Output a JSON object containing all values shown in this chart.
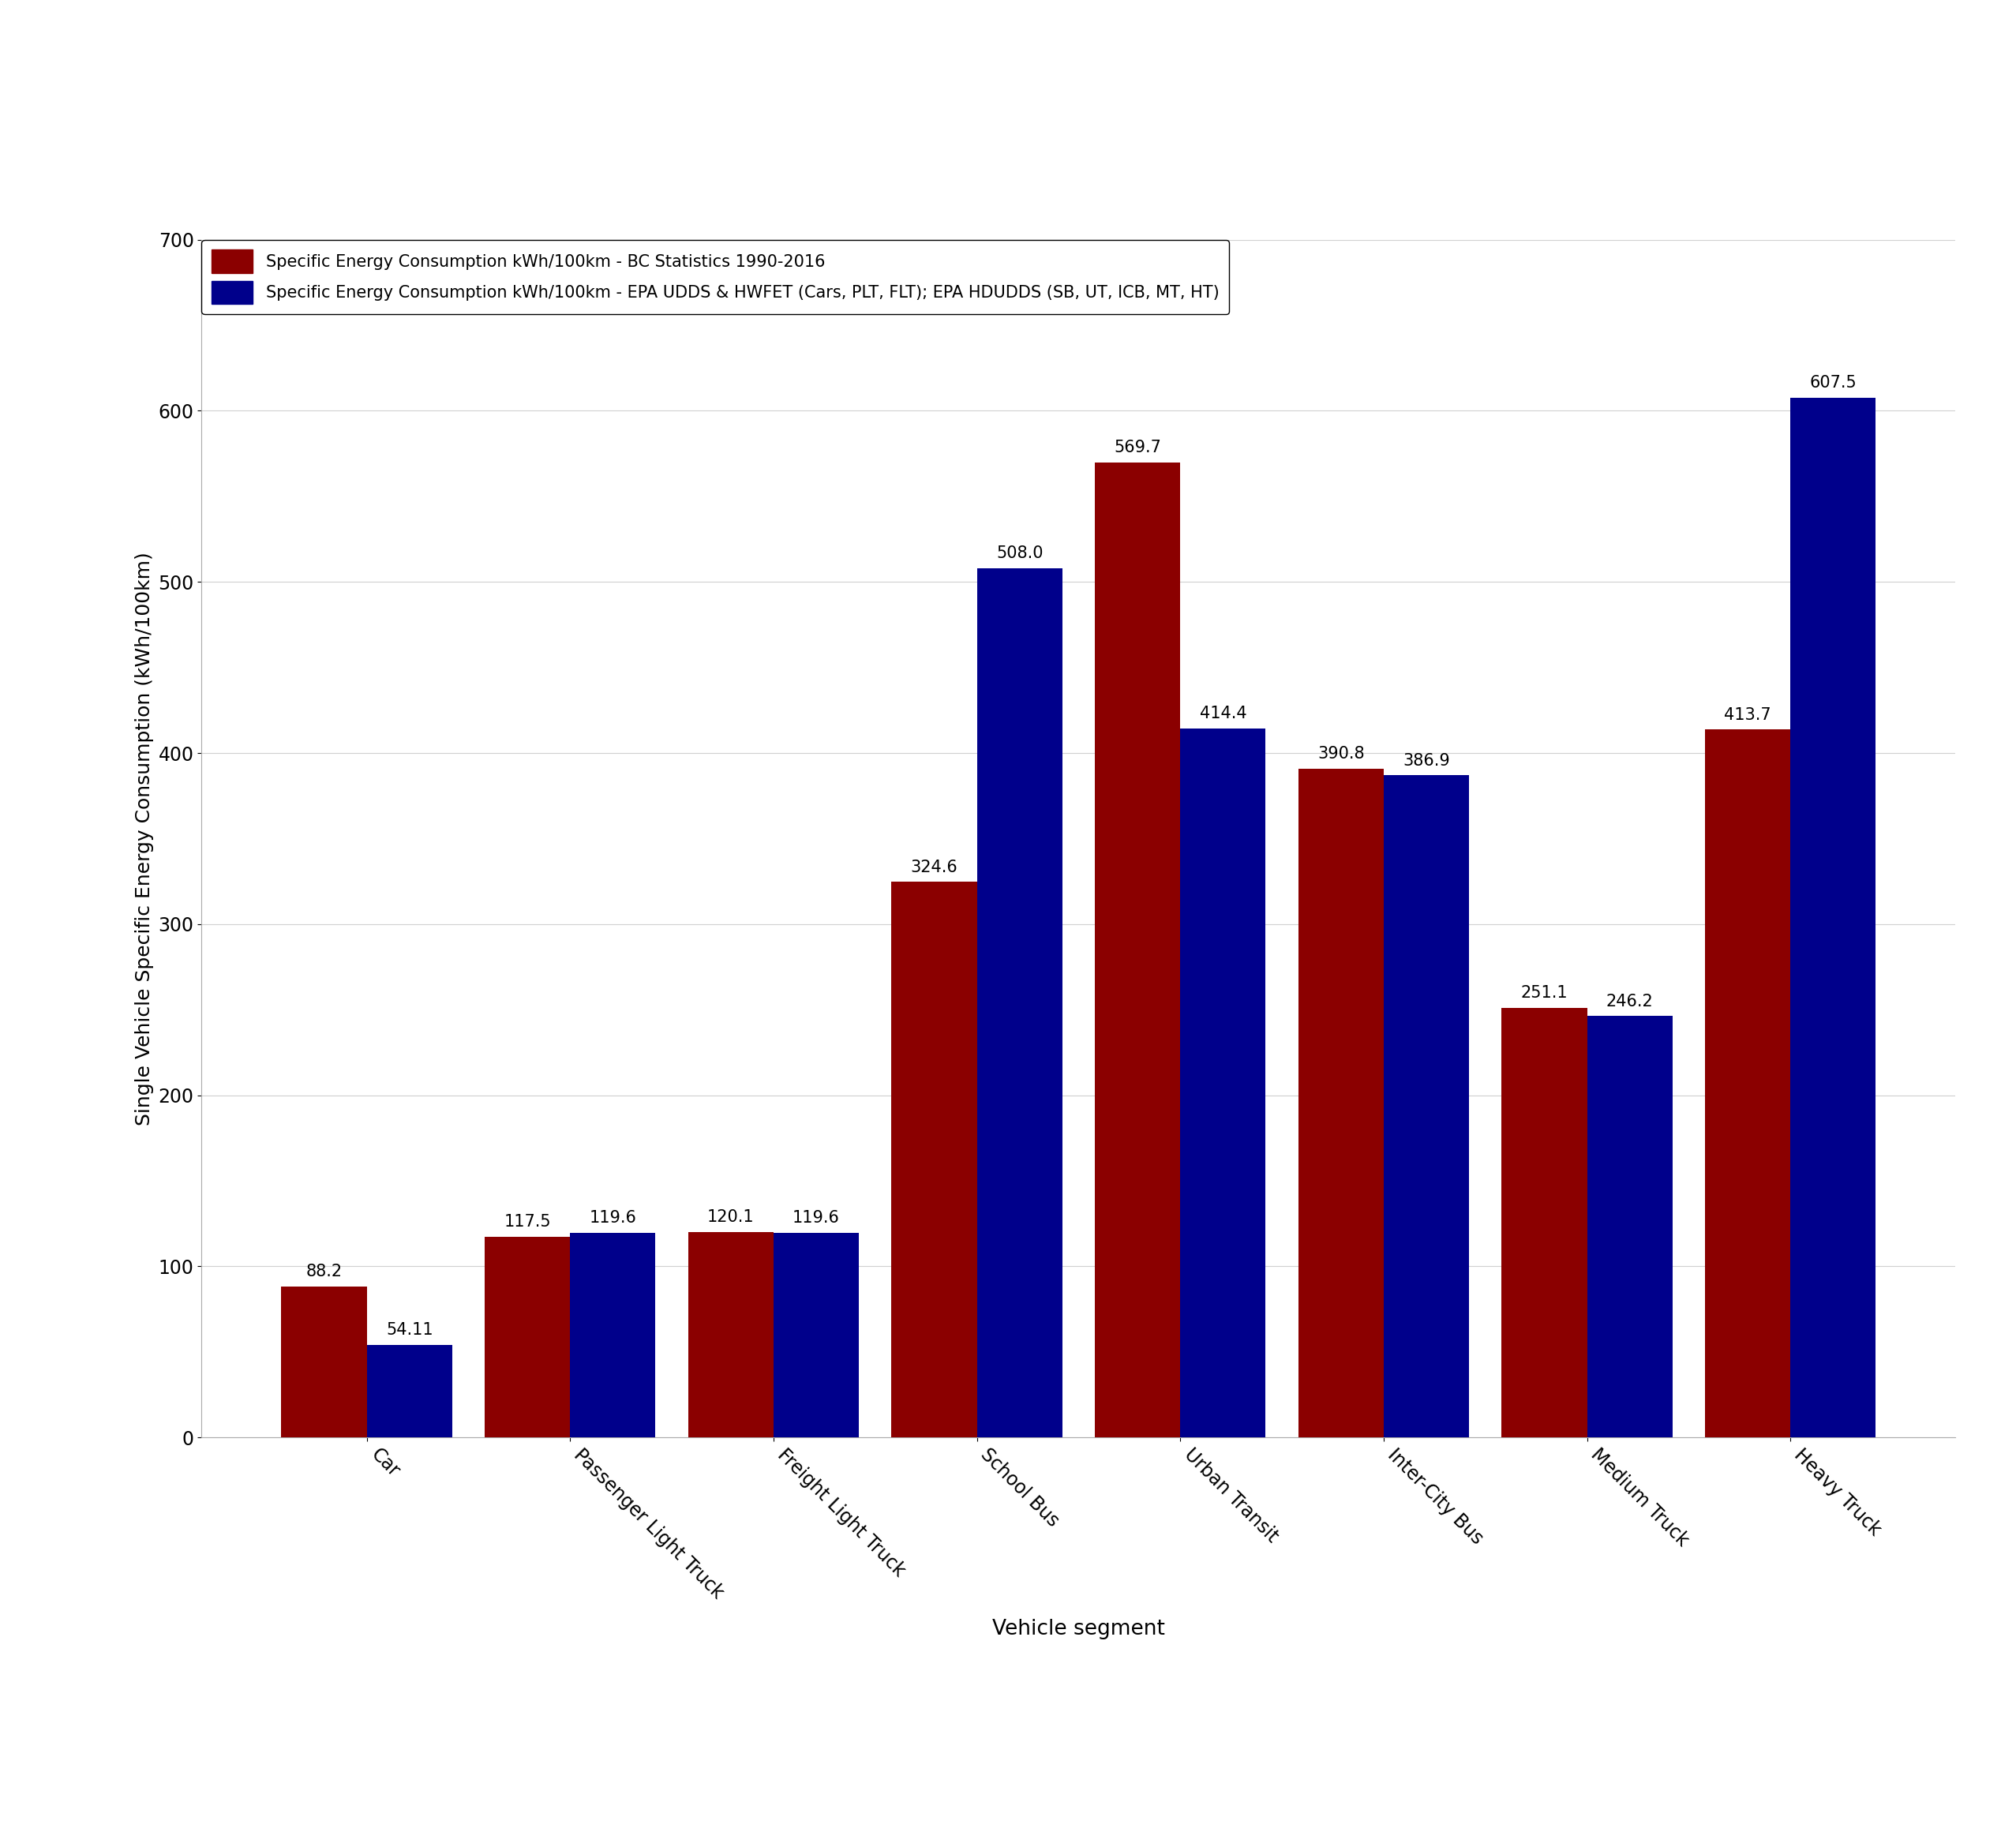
{
  "categories": [
    "Car",
    "Passenger Light Truck",
    "Freight Light Truck",
    "School Bus",
    "Urban Transit",
    "Inter-City Bus",
    "Medium Truck",
    "Heavy Truck"
  ],
  "bc_values": [
    88.2,
    117.5,
    120.1,
    324.6,
    569.7,
    390.8,
    251.1,
    413.7
  ],
  "epa_values": [
    54.11,
    119.6,
    119.6,
    508.0,
    414.4,
    386.9,
    246.2,
    607.5
  ],
  "bc_color": "#8B0000",
  "epa_color": "#00008B",
  "bar_width": 0.42,
  "ylim": [
    0,
    700
  ],
  "yticks": [
    0,
    100,
    200,
    300,
    400,
    500,
    600,
    700
  ],
  "ylabel": "Single Vehicle Specific Energy Consumption (kWh/100km)",
  "xlabel": "Vehicle segment",
  "legend_bc": "Specific Energy Consumption kWh/100km - BC Statistics 1990-2016",
  "legend_epa": "Specific Energy Consumption kWh/100km - EPA UDDS & HWFET (Cars, PLT, FLT); EPA HDUDDS (SB, UT, ICB, MT, HT)",
  "tick_fontsize": 17,
  "legend_fontsize": 15,
  "value_fontsize": 15,
  "ylabel_fontsize": 18,
  "xlabel_fontsize": 19,
  "grid_color": "#d0d0d0"
}
